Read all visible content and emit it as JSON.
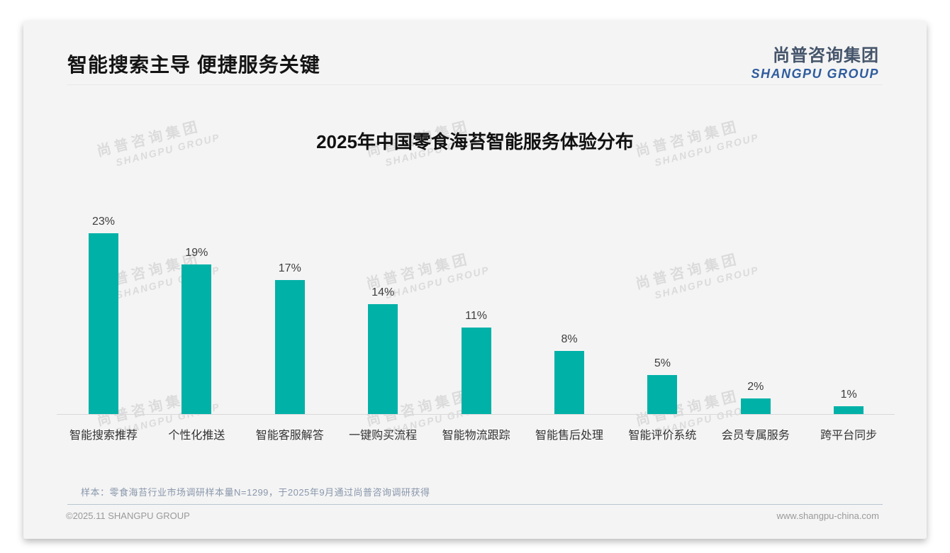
{
  "header": {
    "title": "智能搜索主导 便捷服务关键"
  },
  "logo": {
    "cn": "尚普咨询集团",
    "en": "SHANGPU GROUP"
  },
  "watermark": {
    "cn": "尚普咨询集团",
    "en": "SHANGPU GROUP"
  },
  "footnote": "样本：零食海苔行业市场调研样本量N=1299，于2025年9月通过尚普咨询调研获得",
  "footer": {
    "copyright": "©2025.11 SHANGPU GROUP",
    "website": "www.shangpu-china.com"
  },
  "colors": {
    "bar": "#00b1a8",
    "logo_cn": "#44546a",
    "logo_en": "#2e5c9e",
    "card_bg": "#f4f4f4",
    "footnote_text": "#8997ab"
  },
  "chart_data": {
    "type": "bar",
    "title": "2025年中国零食海苔智能服务体验分布",
    "categories": [
      "智能搜索推荐",
      "个性化推送",
      "智能客服解答",
      "一键购买流程",
      "智能物流跟踪",
      "智能售后处理",
      "智能评价系统",
      "会员专属服务",
      "跨平台同步"
    ],
    "values": [
      23,
      19,
      17,
      14,
      11,
      8,
      5,
      2,
      1
    ],
    "unit": "%",
    "bar_color": "#00b1a8",
    "xlabel": "",
    "ylabel": "",
    "ylim": [
      0,
      25
    ],
    "grid": false,
    "legend": "none",
    "value_labels": "above-bars"
  }
}
